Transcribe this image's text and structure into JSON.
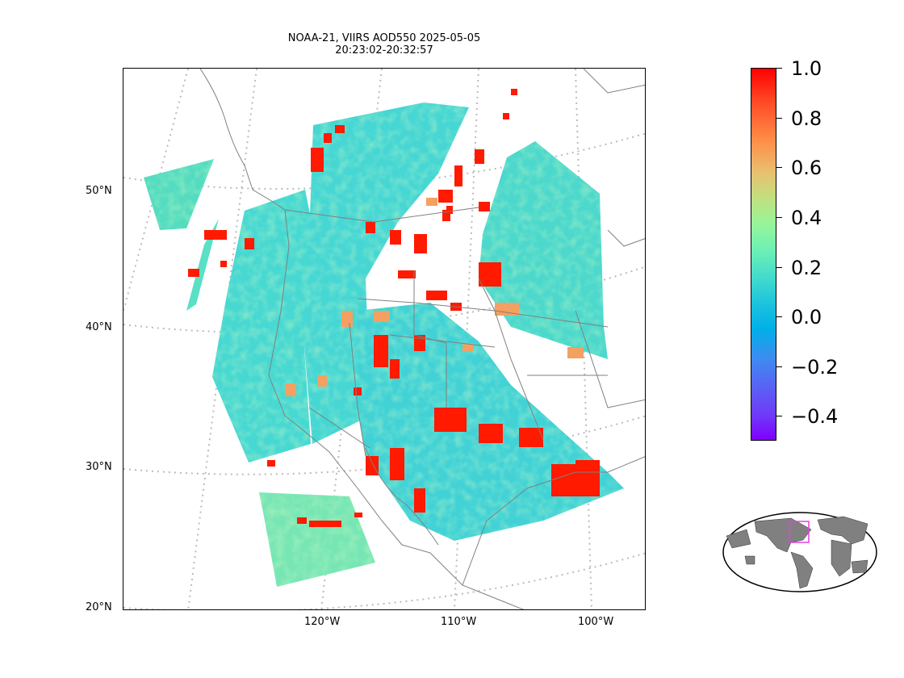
{
  "title_line1": "NOAA-21, VIIRS AOD550 2025-05-05",
  "title_line2": "20:23:02-20:32:57",
  "lat_labels": [
    "50°N",
    "40°N",
    "30°N",
    "20°N"
  ],
  "lon_labels": [
    "120°W",
    "110°W",
    "100°W"
  ],
  "colorbar": {
    "ticks": [
      "1.0",
      "0.8",
      "0.6",
      "0.4",
      "0.2",
      "0.0",
      "−0.2",
      "−0.4"
    ],
    "min": -0.5,
    "max": 1.0,
    "colormap": "rainbow"
  },
  "colors": {
    "coastline": "#808080",
    "gridline": "#bbbbbb",
    "high_aod": "#ff0000",
    "low_aod": "#44d8d0",
    "inset_box": "#e040e0"
  },
  "inset_map": {
    "type": "world-globe",
    "highlight": "western-north-america"
  }
}
